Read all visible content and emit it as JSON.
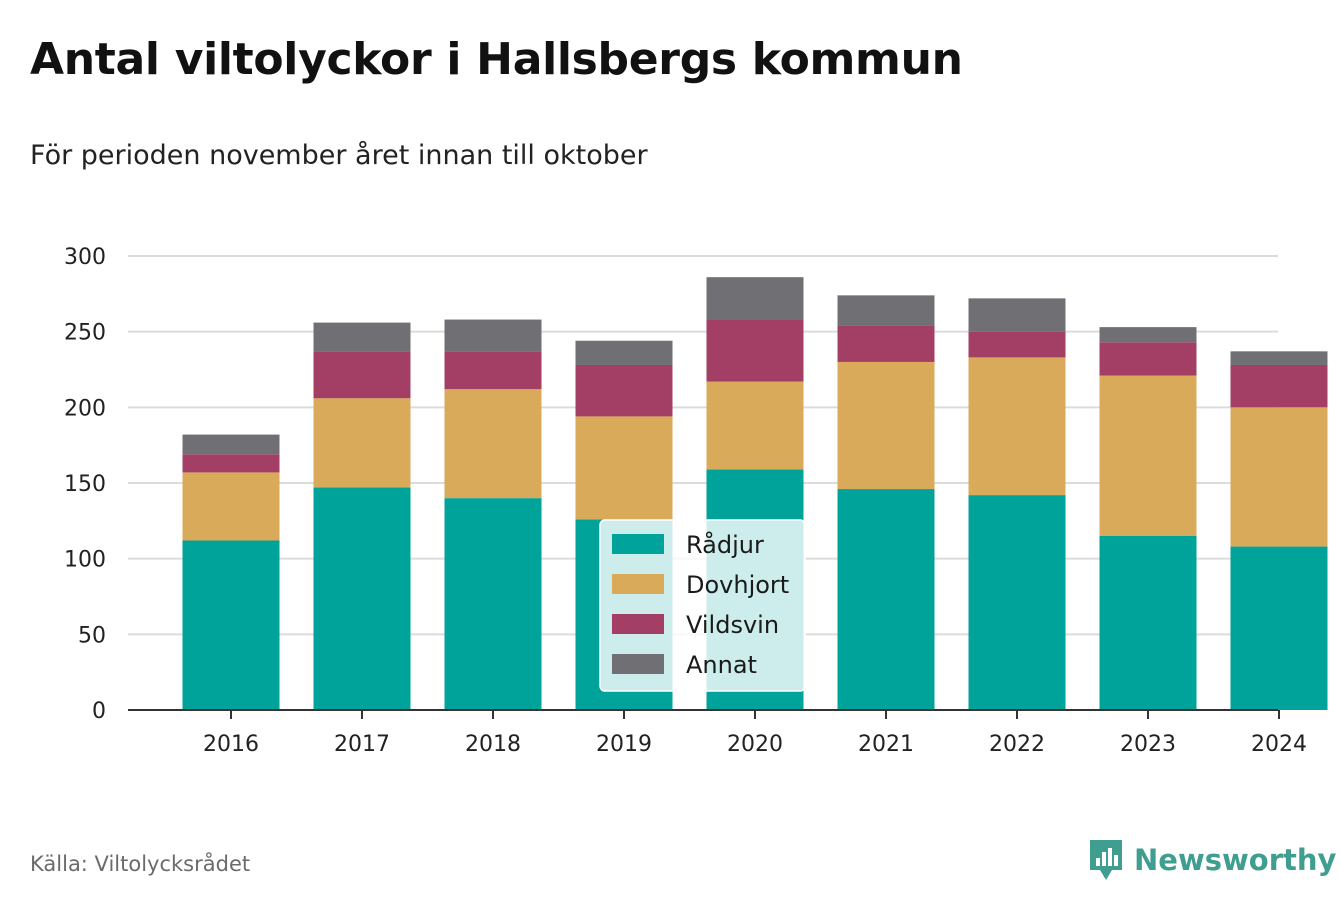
{
  "title": "Antal viltolyckor i Hallsbergs kommun",
  "subtitle": "För perioden november året innan till oktober",
  "source": "Källa: Viltolycksrådet",
  "brand": {
    "name": "Newsworthy",
    "icon": "newsworthy-logo-icon",
    "color": "#3f9e8f"
  },
  "chart_data": {
    "type": "bar",
    "stacked": true,
    "categories": [
      "2016",
      "2017",
      "2018",
      "2019",
      "2020",
      "2021",
      "2022",
      "2023",
      "2024"
    ],
    "series": [
      {
        "name": "Rådjur",
        "color": "#00a39a",
        "values": [
          112,
          147,
          140,
          126,
          159,
          146,
          142,
          115,
          108
        ]
      },
      {
        "name": "Dovhjort",
        "color": "#d9aa59",
        "values": [
          45,
          59,
          72,
          68,
          58,
          84,
          91,
          106,
          92
        ]
      },
      {
        "name": "Vildsvin",
        "color": "#a33f65",
        "values": [
          12,
          31,
          25,
          34,
          41,
          24,
          17,
          22,
          28
        ]
      },
      {
        "name": "Annat",
        "color": "#706f74",
        "values": [
          13,
          19,
          21,
          16,
          28,
          20,
          22,
          10,
          9
        ]
      }
    ],
    "ylim": [
      0,
      300
    ],
    "yticks": [
      "0",
      "50",
      "100",
      "150",
      "200",
      "250",
      "300"
    ],
    "grid": true,
    "legend_position": "center"
  }
}
